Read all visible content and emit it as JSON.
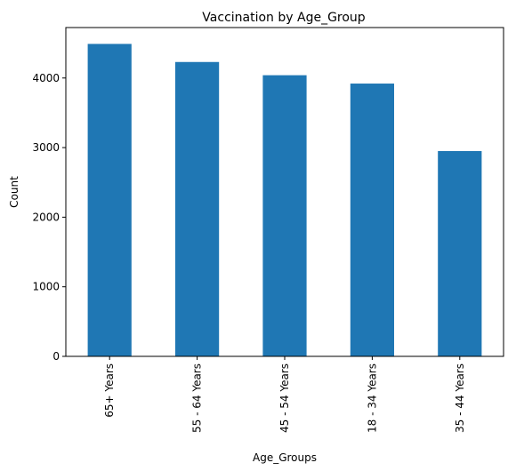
{
  "chart_data": {
    "type": "bar",
    "title": "Vaccination by Age_Group",
    "xlabel": "Age_Groups",
    "ylabel": "Count",
    "categories": [
      "65+ Years",
      "55 - 64 Years",
      "45 - 54 Years",
      "18 - 34 Years",
      "35 - 44 Years"
    ],
    "values": [
      4490,
      4230,
      4040,
      3920,
      2950
    ],
    "ylim": [
      0,
      4725
    ],
    "yticks": [
      0,
      1000,
      2000,
      3000,
      4000
    ],
    "grid": false,
    "legend": "none",
    "bar_color": "#1f77b4"
  }
}
